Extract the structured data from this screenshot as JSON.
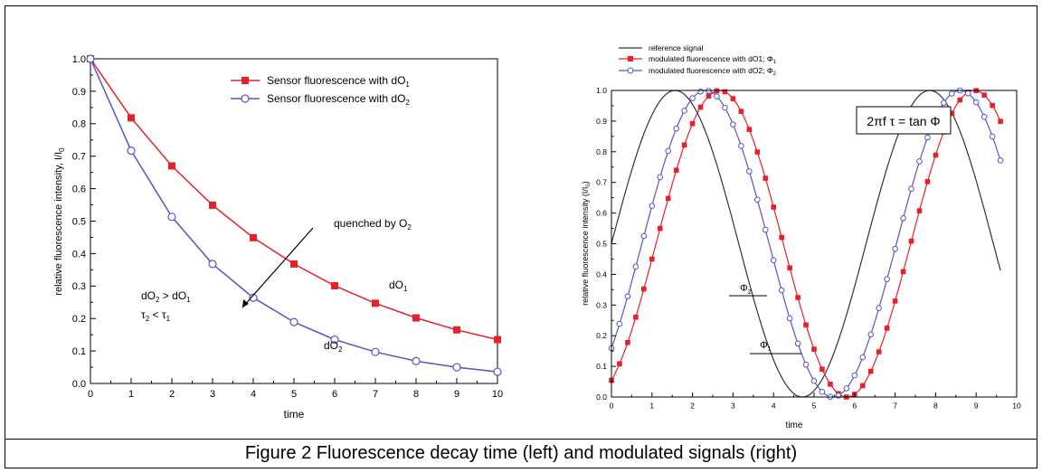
{
  "caption": "Figure 2  Fluorescence decay time (left) and modulated signals (right)",
  "chart_data": [
    {
      "type": "line",
      "xlabel": "time",
      "ylabel": "relative fluorescence intensity, I/I",
      "ylabel_sub": "0",
      "xlim": [
        0,
        10
      ],
      "ylim": [
        0,
        1.0
      ],
      "x_ticks": [
        "0",
        "1",
        "2",
        "3",
        "4",
        "5",
        "6",
        "7",
        "8",
        "9",
        "10"
      ],
      "y_ticks": [
        "0.0",
        "0.1",
        "0.2",
        "0.3",
        "0.4",
        "0.5",
        "0.6",
        "0.7",
        "0.8",
        "0.9",
        "1.0"
      ],
      "legend_position": "top-right",
      "series": [
        {
          "name_main": "Sensor fluorescence with dO",
          "name_sub": "1",
          "color": "#e8202a",
          "marker": "filled-square",
          "x": [
            0,
            1,
            2,
            3,
            4,
            5,
            6,
            7,
            8,
            9,
            10
          ],
          "values": [
            1.0,
            0.818,
            0.67,
            0.549,
            0.449,
            0.368,
            0.301,
            0.247,
            0.202,
            0.165,
            0.135
          ]
        },
        {
          "name_main": "Sensor fluorescence with dO",
          "name_sub": "2",
          "color": "#5555cc",
          "marker": "open-circle",
          "x": [
            0,
            1,
            2,
            3,
            4,
            5,
            6,
            7,
            8,
            9,
            10
          ],
          "values": [
            1.0,
            0.717,
            0.513,
            0.368,
            0.264,
            0.189,
            0.135,
            0.097,
            0.069,
            0.05,
            0.036
          ]
        }
      ],
      "annotations": {
        "quenched_main": "quenched by O",
        "quenched_sub": "2",
        "cond1_a": "dO",
        "cond1_a_sub": "2",
        "cond1_op": " > dO",
        "cond1_b_sub": "1",
        "cond2_a": "τ",
        "cond2_a_sub": "2",
        "cond2_op": " < τ",
        "cond2_b_sub": "1",
        "label_red": "dO",
        "label_red_sub": "1",
        "label_blue": "dO",
        "label_blue_sub": "2"
      }
    },
    {
      "type": "line",
      "xlabel": "time",
      "ylabel": "relative fluorescence intensity (I/I",
      "ylabel_sub": "0",
      "ylabel_end": ")",
      "xlim": [
        0,
        10
      ],
      "ylim": [
        0,
        1.0
      ],
      "x_ticks": [
        "0",
        "1",
        "2",
        "3",
        "4",
        "5",
        "6",
        "7",
        "8",
        "9",
        "10"
      ],
      "y_ticks": [
        "0.0",
        "0.1",
        "0.2",
        "0.3",
        "0.4",
        "0.5",
        "0.6",
        "0.7",
        "0.8",
        "0.9",
        "1.0"
      ],
      "legend_position": "top-left",
      "formula": "2πf τ = tan Φ",
      "phase_labels": {
        "phi2_main": "Φ",
        "phi2_sub": "2",
        "phi1_main": "Φ",
        "phi1_sub": "1"
      },
      "series": [
        {
          "name": "reference signal",
          "color": "#333333",
          "marker": "none",
          "function": "0.5+0.5*sin(x)",
          "x_range": [
            0,
            9.6
          ]
        },
        {
          "name": "modulated fluorescence with dO1; Φ",
          "name_sub": "1",
          "color": "#e8202a",
          "marker": "filled-square",
          "function": "0.5+0.5*sin(x-1.1)",
          "x_range": [
            0,
            9.6
          ],
          "x_step": 0.2
        },
        {
          "name": "modulated fluorescence with dO2; Φ",
          "name_sub": "2",
          "color": "#5555cc",
          "marker": "open-circle",
          "function": "0.5+0.5*sin(x-0.75)",
          "x_range": [
            0,
            9.6
          ],
          "x_step": 0.2
        }
      ]
    }
  ]
}
